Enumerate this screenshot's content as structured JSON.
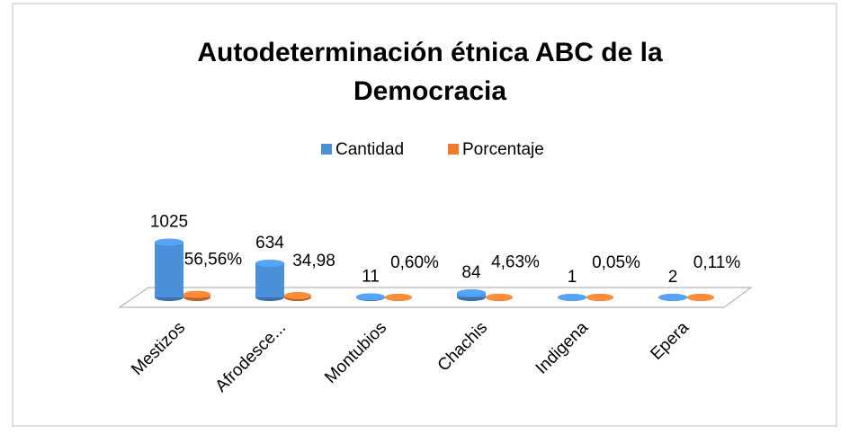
{
  "chart_data": {
    "type": "bar3d",
    "title": "Autodeterminación étnica ABC de la Democracia",
    "categories": [
      "Mestizos",
      "Afrodesce...",
      "Montubios",
      "Chachis",
      "Indigena",
      "Epera"
    ],
    "series": [
      {
        "name": "Cantidad",
        "color": "#4a8fd8",
        "values": [
          1025,
          634,
          11,
          84,
          1,
          2
        ]
      },
      {
        "name": "Porcentaje",
        "color": "#ec7a2f",
        "values": [
          56.56,
          34.98,
          0.6,
          4.63,
          0.05,
          0.11
        ],
        "value_labels": [
          "56,56%",
          "34,98",
          "0,60%",
          "4,63%",
          "0,05%",
          "0,11%"
        ]
      }
    ],
    "ylim": [
      0,
      1100
    ],
    "legend": "top"
  }
}
